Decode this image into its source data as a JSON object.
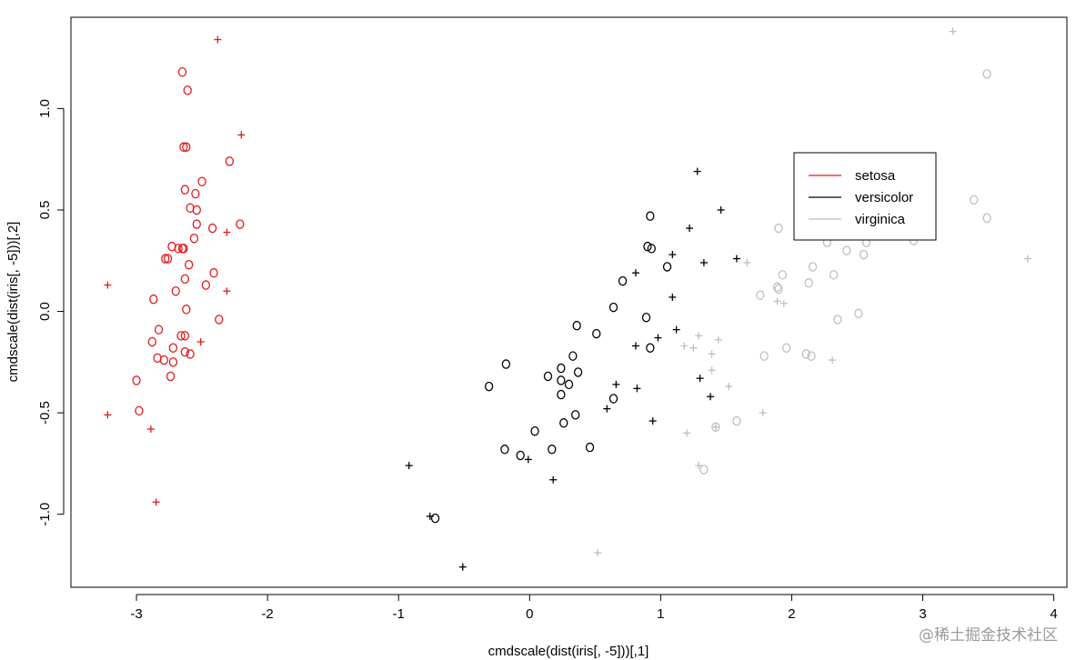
{
  "chart_data": {
    "type": "scatter",
    "title": "",
    "xlabel": "cmdscale(dist(iris[, -5]))[,1]",
    "ylabel": "cmdscale(dist(iris[, -5]))[,2]",
    "xlim": [
      -3.5,
      4.1
    ],
    "ylim": [
      -1.36,
      1.45
    ],
    "xticks": [
      -3,
      -2,
      -1,
      0,
      1,
      2,
      3,
      4
    ],
    "yticks": [
      -1.0,
      -0.5,
      0.0,
      0.5,
      1.0
    ],
    "xtick_labels": [
      "-3",
      "-2",
      "-1",
      "0",
      "1",
      "2",
      "3",
      "4"
    ],
    "ytick_labels": [
      "-1.0",
      "-0.5",
      "0.0",
      "0.5",
      "1.0"
    ],
    "grid": false,
    "legend_position": "upper-right-inner",
    "marker_labels": {
      "circle": "o",
      "plus": "+"
    },
    "series": [
      {
        "name": "setosa",
        "color": "#e31a1c",
        "points": [
          [
            -2.38,
            1.34,
            "+"
          ],
          [
            -2.65,
            1.18,
            "o"
          ],
          [
            -2.61,
            1.09,
            "o"
          ],
          [
            -2.2,
            0.87,
            "+"
          ],
          [
            -2.64,
            0.81,
            "o"
          ],
          [
            -2.62,
            0.81,
            "o"
          ],
          [
            -2.29,
            0.74,
            "o"
          ],
          [
            -2.5,
            0.64,
            "o"
          ],
          [
            -2.63,
            0.6,
            "o"
          ],
          [
            -2.55,
            0.58,
            "o"
          ],
          [
            -2.59,
            0.51,
            "o"
          ],
          [
            -2.54,
            0.5,
            "o"
          ],
          [
            -2.54,
            0.43,
            "o"
          ],
          [
            -2.21,
            0.43,
            "o"
          ],
          [
            -2.42,
            0.41,
            "o"
          ],
          [
            -2.31,
            0.39,
            "+"
          ],
          [
            -2.56,
            0.36,
            "o"
          ],
          [
            -2.73,
            0.32,
            "o"
          ],
          [
            -2.68,
            0.31,
            "o"
          ],
          [
            -2.64,
            0.31,
            "o"
          ],
          [
            -2.65,
            0.31,
            "o"
          ],
          [
            -2.78,
            0.26,
            "o"
          ],
          [
            -2.76,
            0.26,
            "o"
          ],
          [
            -2.6,
            0.23,
            "o"
          ],
          [
            -2.41,
            0.19,
            "o"
          ],
          [
            -2.63,
            0.16,
            "o"
          ],
          [
            -2.47,
            0.13,
            "o"
          ],
          [
            -3.22,
            0.13,
            "+"
          ],
          [
            -2.7,
            0.1,
            "o"
          ],
          [
            -2.31,
            0.1,
            "+"
          ],
          [
            -2.87,
            0.06,
            "o"
          ],
          [
            -2.62,
            0.01,
            "o"
          ],
          [
            -2.37,
            -0.04,
            "o"
          ],
          [
            -2.83,
            -0.09,
            "o"
          ],
          [
            -2.66,
            -0.12,
            "o"
          ],
          [
            -2.63,
            -0.12,
            "o"
          ],
          [
            -2.88,
            -0.15,
            "o"
          ],
          [
            -2.51,
            -0.15,
            "+"
          ],
          [
            -2.72,
            -0.18,
            "o"
          ],
          [
            -2.63,
            -0.2,
            "o"
          ],
          [
            -2.59,
            -0.21,
            "o"
          ],
          [
            -2.84,
            -0.23,
            "o"
          ],
          [
            -2.79,
            -0.24,
            "o"
          ],
          [
            -2.72,
            -0.25,
            "o"
          ],
          [
            -2.74,
            -0.32,
            "o"
          ],
          [
            -3.0,
            -0.34,
            "o"
          ],
          [
            -2.98,
            -0.49,
            "o"
          ],
          [
            -3.22,
            -0.51,
            "+"
          ],
          [
            -2.89,
            -0.58,
            "+"
          ],
          [
            -2.85,
            -0.94,
            "+"
          ]
        ]
      },
      {
        "name": "versicolor",
        "color": "#000000",
        "points": [
          [
            1.28,
            0.69,
            "+"
          ],
          [
            1.46,
            0.5,
            "+"
          ],
          [
            0.92,
            0.47,
            "o"
          ],
          [
            1.22,
            0.41,
            "+"
          ],
          [
            0.9,
            0.32,
            "o"
          ],
          [
            0.93,
            0.31,
            "o"
          ],
          [
            1.09,
            0.28,
            "+"
          ],
          [
            1.58,
            0.26,
            "+"
          ],
          [
            1.33,
            0.24,
            "+"
          ],
          [
            1.05,
            0.22,
            "o"
          ],
          [
            0.81,
            0.19,
            "+"
          ],
          [
            0.71,
            0.15,
            "o"
          ],
          [
            1.09,
            0.07,
            "+"
          ],
          [
            0.64,
            0.02,
            "o"
          ],
          [
            0.89,
            -0.03,
            "o"
          ],
          [
            0.36,
            -0.07,
            "o"
          ],
          [
            1.12,
            -0.09,
            "+"
          ],
          [
            0.51,
            -0.11,
            "o"
          ],
          [
            0.98,
            -0.13,
            "+"
          ],
          [
            0.81,
            -0.17,
            "+"
          ],
          [
            0.92,
            -0.18,
            "o"
          ],
          [
            0.33,
            -0.22,
            "o"
          ],
          [
            -0.18,
            -0.26,
            "o"
          ],
          [
            0.24,
            -0.28,
            "o"
          ],
          [
            0.37,
            -0.3,
            "o"
          ],
          [
            0.14,
            -0.32,
            "o"
          ],
          [
            1.3,
            -0.33,
            "+"
          ],
          [
            0.24,
            -0.34,
            "o"
          ],
          [
            0.3,
            -0.36,
            "o"
          ],
          [
            0.66,
            -0.36,
            "+"
          ],
          [
            -0.31,
            -0.37,
            "o"
          ],
          [
            0.82,
            -0.38,
            "+"
          ],
          [
            0.24,
            -0.41,
            "o"
          ],
          [
            1.38,
            -0.42,
            "+"
          ],
          [
            0.64,
            -0.43,
            "o"
          ],
          [
            0.59,
            -0.48,
            "+"
          ],
          [
            0.35,
            -0.51,
            "o"
          ],
          [
            0.94,
            -0.54,
            "+"
          ],
          [
            0.26,
            -0.55,
            "o"
          ],
          [
            0.04,
            -0.59,
            "o"
          ],
          [
            0.46,
            -0.67,
            "o"
          ],
          [
            -0.19,
            -0.68,
            "o"
          ],
          [
            0.17,
            -0.68,
            "o"
          ],
          [
            -0.07,
            -0.71,
            "o"
          ],
          [
            -0.01,
            -0.73,
            "+"
          ],
          [
            -0.92,
            -0.76,
            "+"
          ],
          [
            0.18,
            -0.83,
            "+"
          ],
          [
            -0.76,
            -1.01,
            "+"
          ],
          [
            -0.72,
            -1.02,
            "o"
          ],
          [
            -0.51,
            -1.26,
            "+"
          ]
        ]
      },
      {
        "name": "virginica",
        "color": "#bebebe",
        "points": [
          [
            3.23,
            1.38,
            "+"
          ],
          [
            3.49,
            1.17,
            "o"
          ],
          [
            3.06,
            0.69,
            "o"
          ],
          [
            3.39,
            0.55,
            "o"
          ],
          [
            3.49,
            0.46,
            "o"
          ],
          [
            1.9,
            0.41,
            "o"
          ],
          [
            2.1,
            0.38,
            "o"
          ],
          [
            2.43,
            0.38,
            "o"
          ],
          [
            2.84,
            0.38,
            "o"
          ],
          [
            2.57,
            0.34,
            "o"
          ],
          [
            2.93,
            0.35,
            "o"
          ],
          [
            2.27,
            0.34,
            "o"
          ],
          [
            2.42,
            0.3,
            "o"
          ],
          [
            2.55,
            0.28,
            "o"
          ],
          [
            3.8,
            0.26,
            "+"
          ],
          [
            1.66,
            0.24,
            "+"
          ],
          [
            2.16,
            0.22,
            "o"
          ],
          [
            1.93,
            0.18,
            "o"
          ],
          [
            2.32,
            0.18,
            "o"
          ],
          [
            2.13,
            0.14,
            "o"
          ],
          [
            1.89,
            0.12,
            "o"
          ],
          [
            1.9,
            0.11,
            "o"
          ],
          [
            1.76,
            0.08,
            "o"
          ],
          [
            1.89,
            0.05,
            "+"
          ],
          [
            1.94,
            0.04,
            "+"
          ],
          [
            2.51,
            -0.01,
            "o"
          ],
          [
            2.35,
            -0.04,
            "o"
          ],
          [
            1.29,
            -0.12,
            "+"
          ],
          [
            1.44,
            -0.14,
            "+"
          ],
          [
            1.18,
            -0.17,
            "+"
          ],
          [
            1.25,
            -0.18,
            "+"
          ],
          [
            1.96,
            -0.18,
            "o"
          ],
          [
            1.39,
            -0.21,
            "+"
          ],
          [
            2.11,
            -0.21,
            "o"
          ],
          [
            1.79,
            -0.22,
            "o"
          ],
          [
            2.15,
            -0.22,
            "o"
          ],
          [
            2.31,
            -0.24,
            "+"
          ],
          [
            1.39,
            -0.29,
            "+"
          ],
          [
            1.52,
            -0.37,
            "+"
          ],
          [
            1.78,
            -0.5,
            "+"
          ],
          [
            1.58,
            -0.54,
            "o"
          ],
          [
            1.42,
            -0.57,
            "o"
          ],
          [
            1.42,
            -0.57,
            "+"
          ],
          [
            1.2,
            -0.6,
            "+"
          ],
          [
            1.29,
            -0.76,
            "+"
          ],
          [
            1.33,
            -0.78,
            "o"
          ],
          [
            0.52,
            -1.19,
            "+"
          ]
        ]
      }
    ]
  },
  "watermark": "@稀土掘金技术社区"
}
